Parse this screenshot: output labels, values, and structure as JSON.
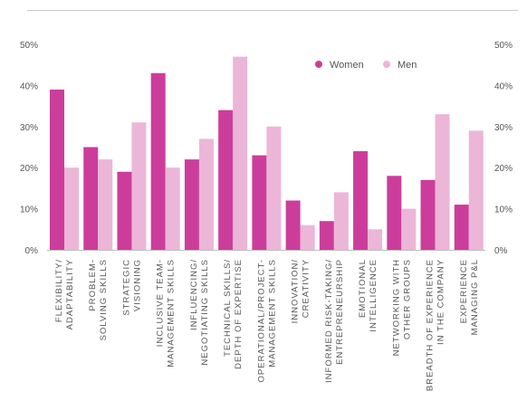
{
  "chart_data": {
    "type": "bar",
    "title": "",
    "xlabel": "",
    "ylabel": "",
    "ylim": [
      0,
      50
    ],
    "yticks": [
      "0%",
      "10%",
      "20%",
      "30%",
      "40%",
      "50%"
    ],
    "grid": false,
    "legend_position": "top-right",
    "categories": [
      [
        "FLEXIBILITY/",
        "ADAPTABILITY"
      ],
      [
        "PROBLEM-",
        "SOLVING SKILLS"
      ],
      [
        "STRATEGIC",
        "VISIONING"
      ],
      [
        "INCLUSIVE TEAM-",
        "MANAGEMENT SKILLS"
      ],
      [
        "INFLUENCING/",
        "NEGOTIATING SKILLS"
      ],
      [
        "TECHNICAL SKILLS/",
        "DEPTH OF EXPERTISE"
      ],
      [
        "OPERATIONAL/PROJECT-",
        "MANAGEMENT SKILLS"
      ],
      [
        "INNOVATION/",
        "CREATIVITY"
      ],
      [
        "INFORMED RISK-TAKING/",
        "ENTREPRENEURSHIP"
      ],
      [
        "EMOTIONAL",
        "INTELLIGENCE"
      ],
      [
        "NETWORKING WITH",
        "OTHER GROUPS"
      ],
      [
        "BREADTH OF EXPERIENCE",
        "IN THE COMPANY"
      ],
      [
        "EXPERIENCE",
        "MANAGING P&L"
      ]
    ],
    "series": [
      {
        "name": "Women",
        "color": "#cc3d9b",
        "values": [
          39,
          25,
          19,
          43,
          22,
          34,
          23,
          12,
          7,
          24,
          18,
          17,
          11
        ]
      },
      {
        "name": "Men",
        "color": "#ecb6d8",
        "values": [
          20,
          22,
          31,
          20,
          27,
          47,
          30,
          6,
          14,
          5,
          10,
          33,
          29
        ]
      }
    ]
  }
}
